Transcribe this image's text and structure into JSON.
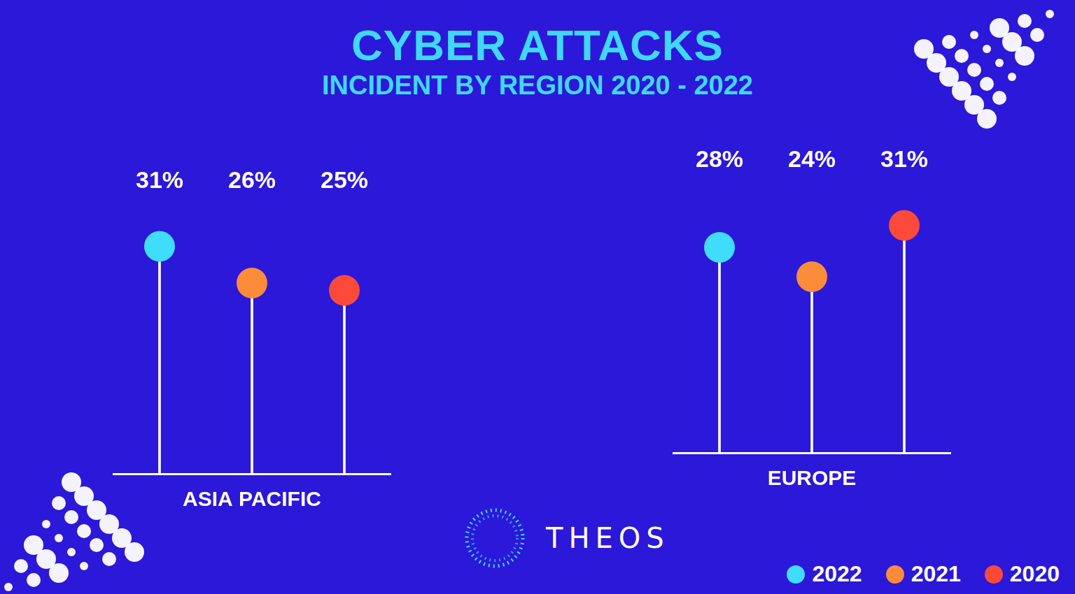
{
  "title": "CYBER ATTACKS",
  "subtitle": "INCIDENT BY REGION 2020 - 2022",
  "brand": "THEOS",
  "chart_data": [
    {
      "type": "lollipop",
      "xlabel": "ASIA PACIFIC",
      "categories": [
        "2022",
        "2021",
        "2020"
      ],
      "values": [
        31,
        26,
        25
      ],
      "value_labels": [
        "31%",
        "26%",
        "25%"
      ],
      "colors": [
        "#3fdcfb",
        "#fd8c3a",
        "#fc4a3a"
      ],
      "ylim": [
        0,
        36
      ],
      "data_labels": true,
      "tick_labels": false,
      "grid": false,
      "legend": "bottom right"
    },
    {
      "type": "lollipop",
      "xlabel": "EUROPE",
      "categories": [
        "2022",
        "2021",
        "2020"
      ],
      "values": [
        28,
        24,
        31
      ],
      "value_labels": [
        "28%",
        "24%",
        "31%"
      ],
      "colors": [
        "#3fdcfb",
        "#fd8c3a",
        "#fc4a3a"
      ],
      "ylim": [
        0,
        36
      ],
      "data_labels": true,
      "tick_labels": false,
      "grid": false,
      "legend": "bottom right"
    }
  ]
}
